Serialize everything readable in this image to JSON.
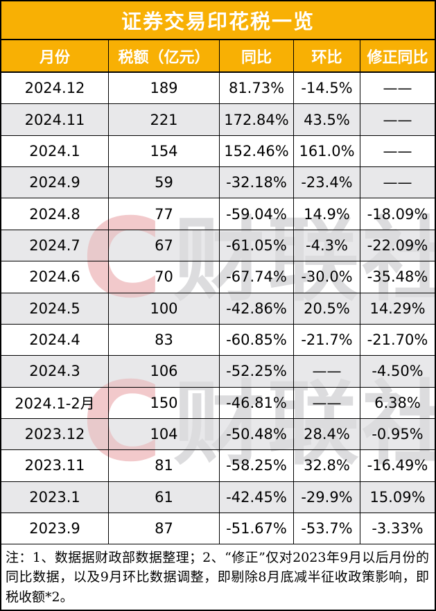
{
  "title": "证券交易印花税一览",
  "chart_data": {
    "type": "table",
    "title": "证券交易印花税一览",
    "columns": [
      "月份",
      "税额（亿元）",
      "同比",
      "环比",
      "修正同比"
    ],
    "rows": [
      [
        "2024.12",
        "189",
        "81.73%",
        "-14.5%",
        "——"
      ],
      [
        "2024.11",
        "221",
        "172.84%",
        "43.5%",
        "——"
      ],
      [
        "2024.1",
        "154",
        "152.46%",
        "161.0%",
        "——"
      ],
      [
        "2024.9",
        "59",
        "-32.18%",
        "-23.4%",
        "——"
      ],
      [
        "2024.8",
        "77",
        "-59.04%",
        "14.9%",
        "-18.09%"
      ],
      [
        "2024.7",
        "67",
        "-61.05%",
        "-4.3%",
        "-22.09%"
      ],
      [
        "2024.6",
        "70",
        "-67.74%",
        "-30.0%",
        "-35.48%"
      ],
      [
        "2024.5",
        "100",
        "-42.86%",
        "20.5%",
        "14.29%"
      ],
      [
        "2024.4",
        "83",
        "-60.85%",
        "-21.7%",
        "-21.70%"
      ],
      [
        "2024.3",
        "106",
        "-52.25%",
        "——",
        "-4.50%"
      ],
      [
        "2024.1-2月",
        "150",
        "-46.81%",
        "——",
        "6.38%"
      ],
      [
        "2023.12",
        "104",
        "-50.48%",
        "28.4%",
        "-0.95%"
      ],
      [
        "2023.11",
        "81",
        "-58.25%",
        "32.8%",
        "-16.49%"
      ],
      [
        "2023.1",
        "61",
        "-42.45%",
        "-29.9%",
        "15.09%"
      ],
      [
        "2023.9",
        "87",
        "-51.67%",
        "-53.7%",
        "-3.33%"
      ]
    ],
    "layout": {
      "striped": true,
      "header_position": "top",
      "grid": true
    }
  },
  "note": "注：1、数据据财政部数据整理；2、“修正”仅对2023年9月以后月份的同比数据，以及9月环比数据调整，即剔除8月底减半征收政策影响，即税收额*2。",
  "watermark": {
    "logo_letter": "C",
    "text": "财联社"
  },
  "colors": {
    "header_bg": "#F8B004",
    "header_text": "#FFFFFF",
    "alt_row_bg": "#E8E8EA",
    "border": "#000000",
    "watermark_text": "#DCDCDE",
    "watermark_logo": "#F2C9CB"
  }
}
